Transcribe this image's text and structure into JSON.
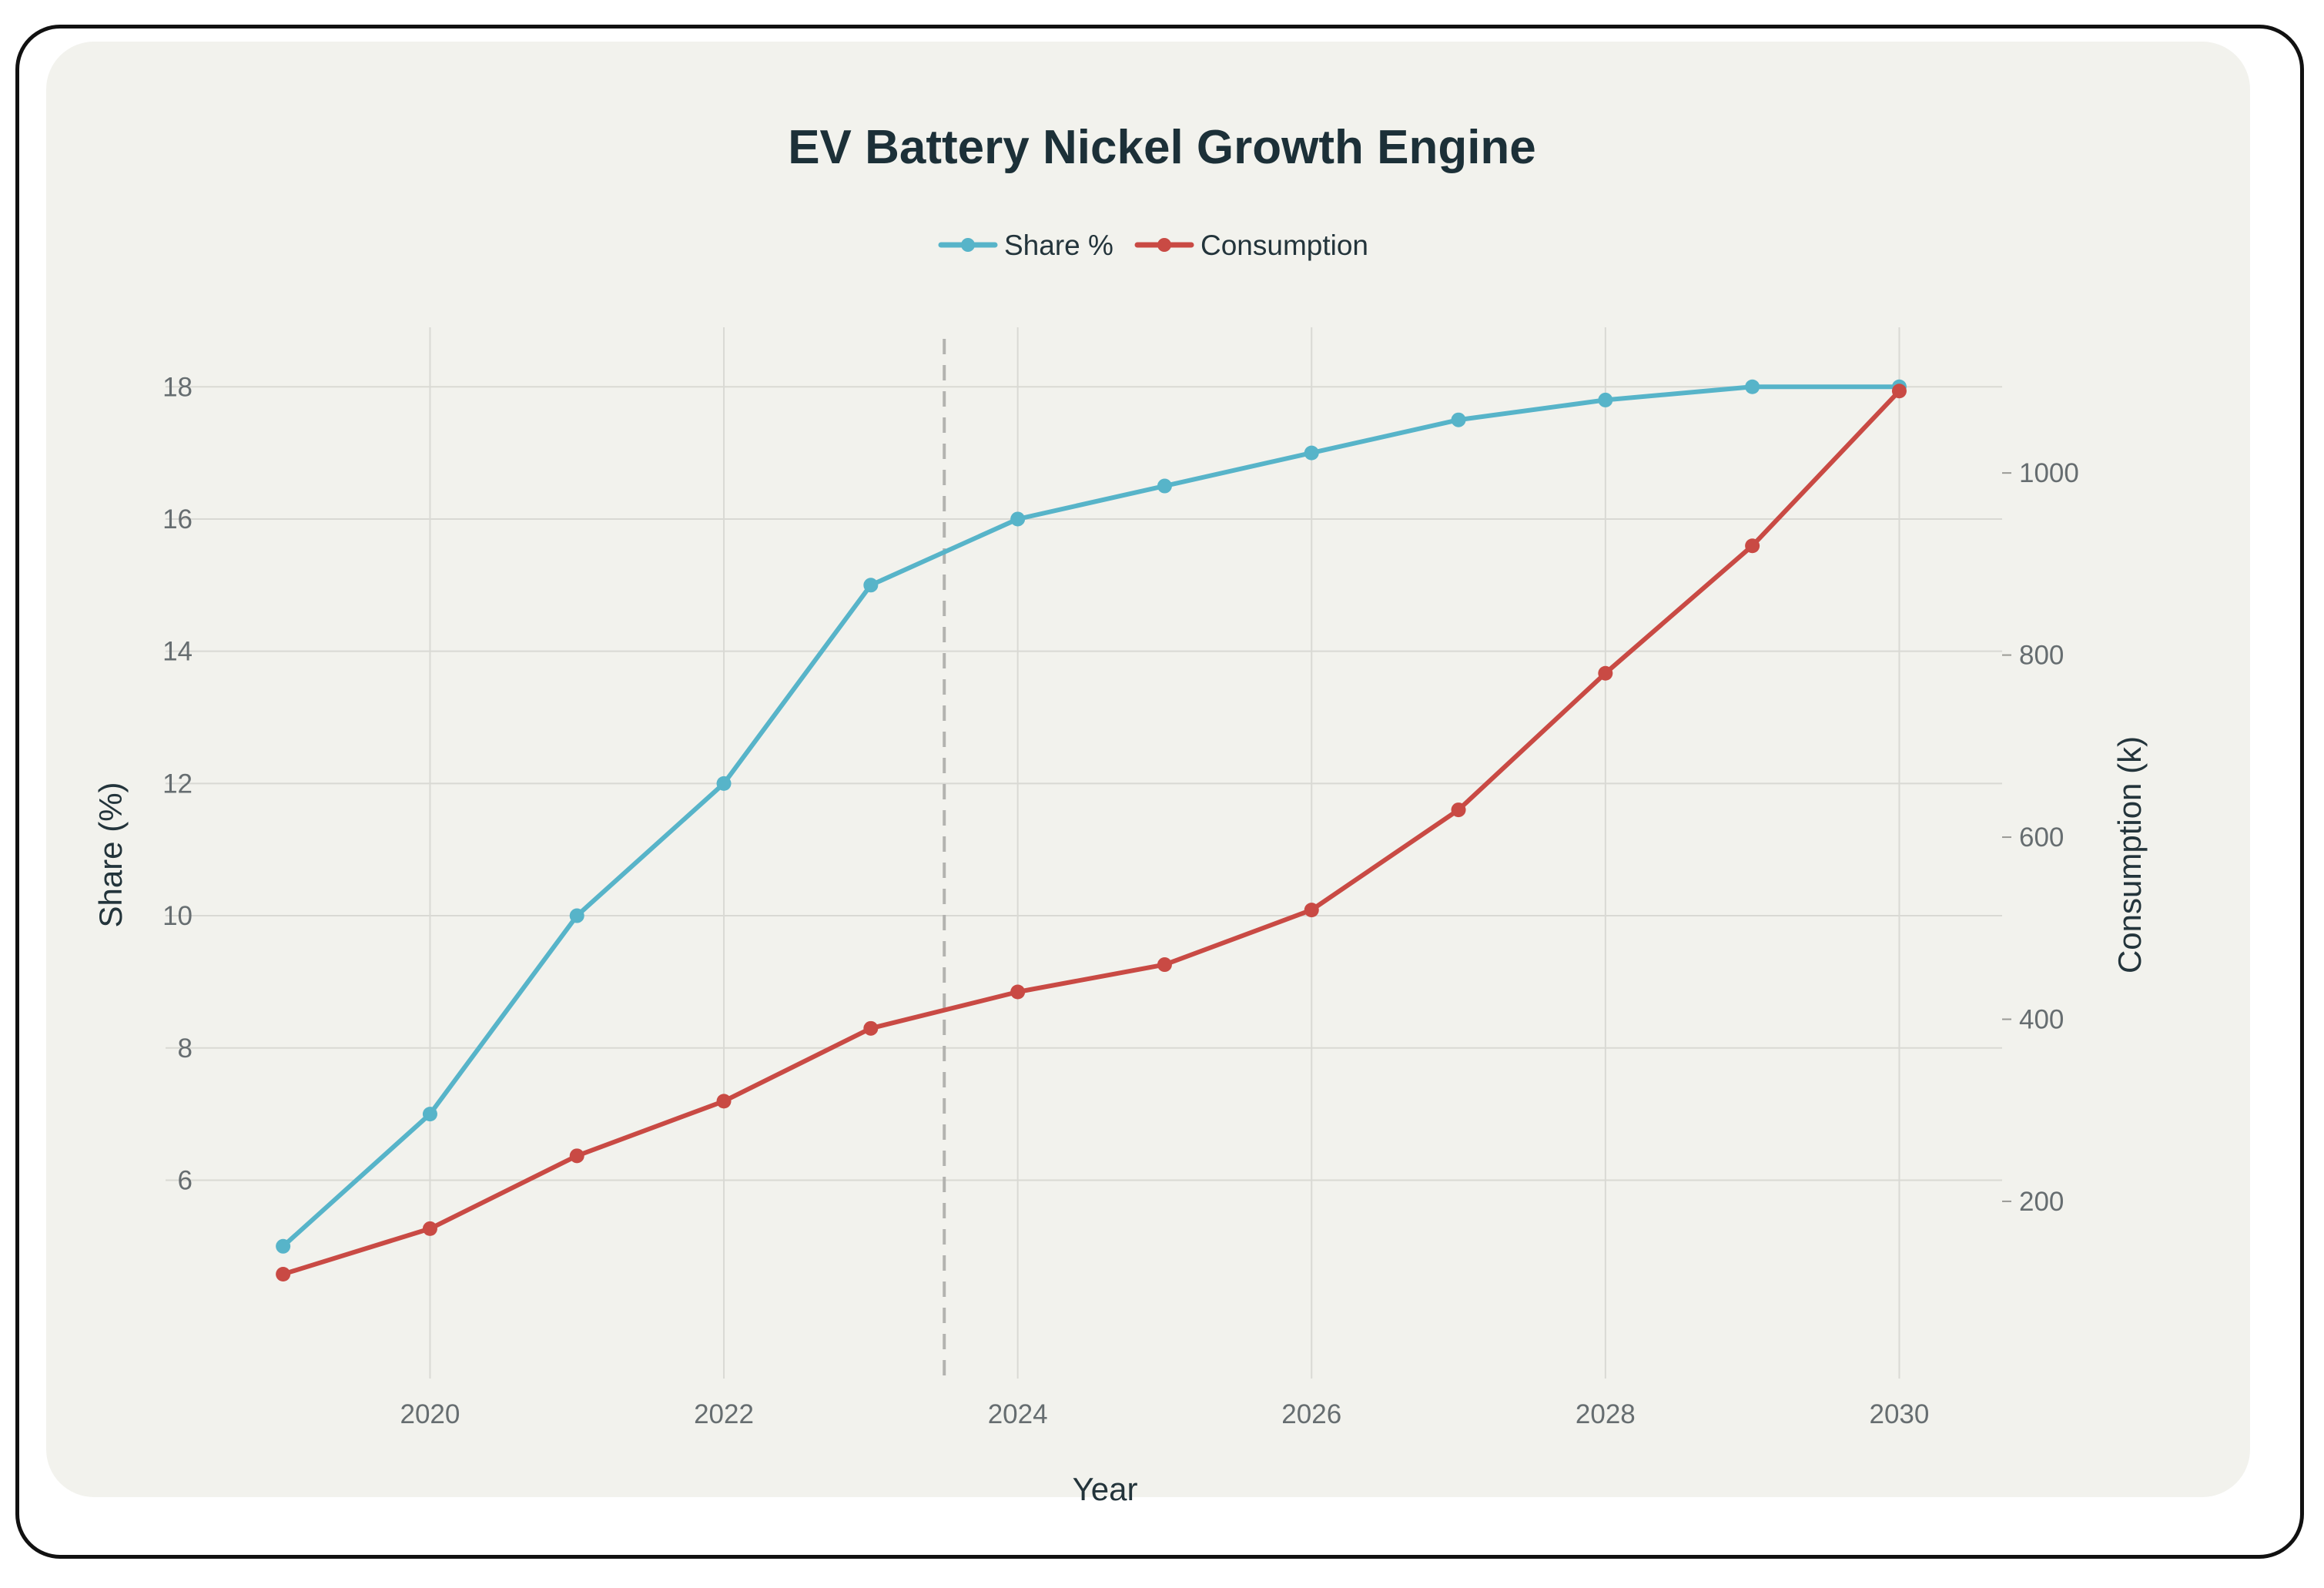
{
  "chart_data": {
    "type": "line",
    "title": "EV Battery Nickel Growth Engine",
    "xlabel": "Year",
    "ylabel": "Share (%)",
    "y2label": "Consumption (k)",
    "x": [
      2019,
      2020,
      2021,
      2022,
      2023,
      2024,
      2025,
      2026,
      2027,
      2028,
      2029,
      2030
    ],
    "x_ticks": [
      2020,
      2022,
      2024,
      2026,
      2028,
      2030
    ],
    "y_ticks": [
      6,
      8,
      10,
      12,
      14,
      16,
      18
    ],
    "y2_ticks": [
      200,
      400,
      600,
      800,
      1000
    ],
    "xlim": [
      2018.2,
      2030.7
    ],
    "ylim": [
      3.0,
      18.9
    ],
    "y2lim": [
      5.4,
      1160
    ],
    "grid": true,
    "legend_position": "top-center",
    "divider_x": 2023.5,
    "series": [
      {
        "name": "Share %",
        "axis": "left",
        "color": "#57b4c9",
        "values": [
          5,
          7,
          10,
          12,
          15,
          16,
          16.5,
          17,
          17.5,
          17.8,
          18,
          18
        ]
      },
      {
        "name": "Consumption",
        "axis": "right",
        "color": "#c94a44",
        "values": [
          120,
          170,
          250,
          310,
          390,
          430,
          460,
          520,
          630,
          780,
          920,
          1090
        ]
      }
    ]
  }
}
